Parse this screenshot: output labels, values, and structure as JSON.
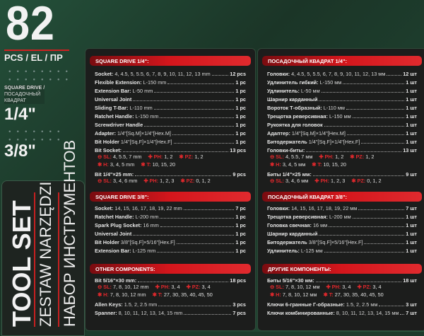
{
  "brand": {
    "count": "82",
    "pcs": "PCS / EL / ПР",
    "drive_label_en": "SQUARE DRIVE /",
    "drive_label_ru": "ПОСАДОЧНЫЙ КВАДРАТ",
    "drive1": "1/4\"",
    "drive2": "3/8\"",
    "title_en": "TOOL SET",
    "title_pl": "ZESTAW NARZĘDZI",
    "title_ru": "НАБОР ИНСТРУМЕНТОВ"
  },
  "colors": {
    "accent": "#d4161c",
    "background": "#1d3a2b",
    "panel": "#1c1d1c"
  },
  "left": [
    {
      "title": "SQUARE DRIVE 1/4\":",
      "rows": [
        {
          "label": "Socket:",
          "detail": "4, 4.5, 5, 5.5, 6, 7, 8, 9, 10, 11, 12, 13 mm",
          "qty": "12 pcs"
        },
        {
          "label": "Flexible Extension:",
          "detail": "L-150 mm",
          "qty": "1 pc"
        },
        {
          "label": "Extension Bar:",
          "detail": "L-50 mm",
          "qty": "1 pc"
        },
        {
          "label": "Universal Joint",
          "detail": "",
          "qty": "1 pc"
        },
        {
          "label": "Sliding T-Bar:",
          "detail": "L-110 mm",
          "qty": "1 pc"
        },
        {
          "label": "Ratchet Handle:",
          "detail": "L-150 mm",
          "qty": "1 pc"
        },
        {
          "label": "Screwdriver Handle",
          "detail": "",
          "qty": "1 pc"
        },
        {
          "label": "Adapter:",
          "detail": "1/4\"[Sq.M]×1/4\"[Hex.M]",
          "qty": "1 pc"
        },
        {
          "label": "Bit Holder",
          "detail": "1/4\"[Sq.F]×1/4\"[Hex.F]",
          "qty": "1 pc"
        },
        {
          "label": "Bit Socket:",
          "detail": "",
          "qty": "13 pcs"
        },
        {
          "bits": [
            {
              "sym": "⊖ SL:",
              "val": "4, 5.5, 7 mm"
            },
            {
              "sym": "✚ PH:",
              "val": "1, 2"
            },
            {
              "sym": "✱ PZ:",
              "val": "1, 2"
            }
          ]
        },
        {
          "bits": [
            {
              "sym": "✱ H:",
              "val": "3, 4, 5 mm"
            },
            {
              "sym": "✱ T:",
              "val": "10, 15, 20"
            }
          ]
        },
        {
          "label": "Bit 1/4\"×25 mm:",
          "detail": "",
          "qty": "9 pcs"
        },
        {
          "bits": [
            {
              "sym": "⊖ SL:",
              "val": "3, 4, 6 mm"
            },
            {
              "sym": "✚ PH:",
              "val": "1, 2, 3"
            },
            {
              "sym": "✱ PZ:",
              "val": "0, 1, 2"
            }
          ]
        }
      ]
    },
    {
      "title": "SQUARE DRIVE 3/8\":",
      "rows": [
        {
          "label": "Socket:",
          "detail": "14, 15, 16, 17, 18, 19, 22 mm",
          "qty": "7 pc"
        },
        {
          "label": "Ratchet Handle:",
          "detail": "L-200 mm",
          "qty": "1 pc"
        },
        {
          "label": "Spark Plug Socket:",
          "detail": "16 mm",
          "qty": "1 pc"
        },
        {
          "label": "Universal Joint",
          "detail": "",
          "qty": "1 pc"
        },
        {
          "label": "Bit Holder",
          "detail": "3/8\"[Sq.F]×5/16\"[Hex.F]",
          "qty": "1 pc"
        },
        {
          "label": "Extension Bar:",
          "detail": "L-125 mm",
          "qty": "1 pc"
        }
      ]
    },
    {
      "title": "OTHER COMPONENTS:",
      "rows": [
        {
          "label": "Bit 5/16\"×30 mm:",
          "detail": "",
          "qty": "18 pcs"
        },
        {
          "bits": [
            {
              "sym": "⊖ SL:",
              "val": "7, 8, 10, 12 mm"
            },
            {
              "sym": "✚ PH:",
              "val": "3, 4"
            },
            {
              "sym": "✚ PZ:",
              "val": "3, 4"
            }
          ]
        },
        {
          "bits": [
            {
              "sym": "✱ H:",
              "val": "7, 8, 10, 12 mm"
            },
            {
              "sym": "✱ T:",
              "val": "27, 30, 35, 40, 45, 50"
            }
          ]
        },
        {
          "label": "Allen Keys:",
          "detail": "1.5, 2, 2.5 mm",
          "qty": "3 pcs"
        },
        {
          "label": "Spanner:",
          "detail": "8, 10, 11, 12, 13, 14, 15 mm",
          "qty": "7 pcs"
        }
      ]
    }
  ],
  "right": [
    {
      "title": "ПОСАДОЧНЫЙ КВАДРАТ 1/4\":",
      "rows": [
        {
          "label": "Головки:",
          "detail": "4, 4.5, 5, 5.5, 6, 7, 8, 9, 10, 11, 12, 13 мм",
          "qty": "12 шт"
        },
        {
          "label": "Удлинитель гибкий:",
          "detail": "L-150 мм",
          "qty": "1 шт"
        },
        {
          "label": "Удлинитель:",
          "detail": "L-50 мм",
          "qty": "1 шт"
        },
        {
          "label": "Шарнир карданный",
          "detail": "",
          "qty": "1 шт"
        },
        {
          "label": "Вороток Т-образный:",
          "detail": "L-110 мм",
          "qty": "1 шт"
        },
        {
          "label": "Трещотка реверсивная:",
          "detail": "L-150 мм",
          "qty": "1 шт"
        },
        {
          "label": "Рукоятка для головок",
          "detail": "",
          "qty": "1 шт"
        },
        {
          "label": "Адаптер:",
          "detail": "1/4\"[Sq.M]×1/4\"[Hex.M]",
          "qty": "1 шт"
        },
        {
          "label": "Битодержатель",
          "detail": "1/4\"[Sq.F]×1/4\"[Hex.F]",
          "qty": "1 шт"
        },
        {
          "label": "Головки-биты:",
          "detail": "",
          "qty": "13 шт"
        },
        {
          "bits": [
            {
              "sym": "⊖ SL:",
              "val": "4, 5.5, 7 мм"
            },
            {
              "sym": "✚ PH:",
              "val": "1, 2"
            },
            {
              "sym": "✱ PZ:",
              "val": "1, 2"
            }
          ]
        },
        {
          "bits": [
            {
              "sym": "✱ H:",
              "val": "3, 4, 5 мм"
            },
            {
              "sym": "✱ T:",
              "val": "10, 15, 20"
            }
          ]
        },
        {
          "label": "Биты 1/4\"×25 мм:",
          "detail": "",
          "qty": "9 шт"
        },
        {
          "bits": [
            {
              "sym": "⊖ SL:",
              "val": "3, 4, 6 мм"
            },
            {
              "sym": "✚ PH:",
              "val": "1, 2, 3"
            },
            {
              "sym": "✱ PZ:",
              "val": "0, 1, 2"
            }
          ]
        }
      ]
    },
    {
      "title": "ПОСАДОЧНЫЙ КВАДРАТ 3/8\":",
      "rows": [
        {
          "label": "Головки:",
          "detail": "14, 15, 16, 17, 18, 19, 22 мм",
          "qty": "7 шт"
        },
        {
          "label": "Трещотка реверсивная:",
          "detail": "L-200 мм",
          "qty": "1 шт"
        },
        {
          "label": "Головка свечная:",
          "detail": "16 мм",
          "qty": "1 шт"
        },
        {
          "label": "Шарнир карданный",
          "detail": "",
          "qty": "1 шт"
        },
        {
          "label": "Битодержатель",
          "detail": "3/8\"[Sq.F]×5/16\"[Hex.F]",
          "qty": "1 шт"
        },
        {
          "label": "Удлинитель:",
          "detail": "L-125 мм",
          "qty": "1 шт"
        }
      ]
    },
    {
      "title": "ДРУГИЕ КОМПОНЕНТЫ:",
      "rows": [
        {
          "label": "Биты 5/16\"×30 мм:",
          "detail": "",
          "qty": "18 шт"
        },
        {
          "bits": [
            {
              "sym": "⊖ SL:",
              "val": "7, 8, 10, 12 мм"
            },
            {
              "sym": "✚ PH:",
              "val": "3, 4"
            },
            {
              "sym": "✚ PZ:",
              "val": "3, 4"
            }
          ]
        },
        {
          "bits": [
            {
              "sym": "✱ H:",
              "val": "7, 8, 10, 12 мм"
            },
            {
              "sym": "✱ T:",
              "val": "27, 30, 35, 40, 45, 50"
            }
          ]
        },
        {
          "label": "Ключи 6-гранные Г-образные:",
          "detail": "1.5, 2, 2.5 мм",
          "qty": "3 шт"
        },
        {
          "label": "Ключи комбинированные:",
          "detail": "8, 10, 11, 12, 13, 14, 15 мм",
          "qty": "7 шт"
        }
      ]
    }
  ]
}
